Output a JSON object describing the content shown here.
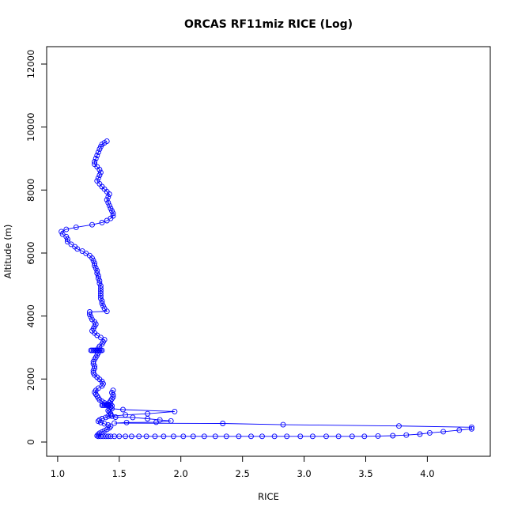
{
  "chart_data": {
    "type": "scatter",
    "title": "ORCAS RF11miz RICE (Log)",
    "xlabel": "RICE",
    "ylabel": "Altitude (m)",
    "xlim": [
      1.0,
      4.4
    ],
    "ylim": [
      -200,
      12500
    ],
    "xticks": [
      "1.0",
      "1.5",
      "2.0",
      "2.5",
      "3.0",
      "3.5",
      "4.0"
    ],
    "yticks": [
      "0",
      "2000",
      "4000",
      "6000",
      "8000",
      "10000",
      "12000"
    ],
    "grid": false,
    "colors": {
      "series": "#0000ff"
    },
    "series": [
      {
        "points": [
          [
            1.4,
            9550
          ],
          [
            1.38,
            9500
          ],
          [
            1.36,
            9450
          ],
          [
            1.35,
            9380
          ],
          [
            1.34,
            9300
          ],
          [
            1.33,
            9200
          ],
          [
            1.32,
            9100
          ],
          [
            1.31,
            9000
          ],
          [
            1.3,
            8900
          ],
          [
            1.3,
            8820
          ],
          [
            1.32,
            8740
          ],
          [
            1.34,
            8650
          ],
          [
            1.35,
            8560
          ],
          [
            1.34,
            8470
          ],
          [
            1.33,
            8380
          ],
          [
            1.32,
            8290
          ],
          [
            1.34,
            8200
          ],
          [
            1.36,
            8110
          ],
          [
            1.38,
            8030
          ],
          [
            1.4,
            7950
          ],
          [
            1.42,
            7870
          ],
          [
            1.41,
            7780
          ],
          [
            1.4,
            7690
          ],
          [
            1.41,
            7600
          ],
          [
            1.42,
            7510
          ],
          [
            1.43,
            7420
          ],
          [
            1.44,
            7340
          ],
          [
            1.45,
            7260
          ],
          [
            1.45,
            7180
          ],
          [
            1.43,
            7100
          ],
          [
            1.4,
            7030
          ],
          [
            1.36,
            6970
          ],
          [
            1.28,
            6900
          ],
          [
            1.15,
            6820
          ],
          [
            1.07,
            6750
          ],
          [
            1.03,
            6680
          ],
          [
            1.04,
            6600
          ],
          [
            1.07,
            6520
          ],
          [
            1.08,
            6440
          ],
          [
            1.08,
            6360
          ],
          [
            1.11,
            6280
          ],
          [
            1.14,
            6200
          ],
          [
            1.16,
            6130
          ],
          [
            1.2,
            6060
          ],
          [
            1.23,
            5990
          ],
          [
            1.26,
            5920
          ],
          [
            1.28,
            5840
          ],
          [
            1.29,
            5760
          ],
          [
            1.3,
            5680
          ],
          [
            1.3,
            5600
          ],
          [
            1.31,
            5520
          ],
          [
            1.32,
            5440
          ],
          [
            1.32,
            5360
          ],
          [
            1.33,
            5280
          ],
          [
            1.33,
            5200
          ],
          [
            1.34,
            5120
          ],
          [
            1.34,
            5040
          ],
          [
            1.35,
            4960
          ],
          [
            1.35,
            4880
          ],
          [
            1.35,
            4800
          ],
          [
            1.35,
            4720
          ],
          [
            1.35,
            4640
          ],
          [
            1.35,
            4560
          ],
          [
            1.36,
            4480
          ],
          [
            1.36,
            4400
          ],
          [
            1.37,
            4320
          ],
          [
            1.38,
            4240
          ],
          [
            1.4,
            4150
          ],
          [
            1.26,
            4130
          ],
          [
            1.26,
            4050
          ],
          [
            1.27,
            3970
          ],
          [
            1.28,
            3890
          ],
          [
            1.3,
            3810
          ],
          [
            1.31,
            3740
          ],
          [
            1.3,
            3670
          ],
          [
            1.29,
            3600
          ],
          [
            1.28,
            3530
          ],
          [
            1.3,
            3460
          ],
          [
            1.32,
            3390
          ],
          [
            1.35,
            3320
          ],
          [
            1.38,
            3250
          ],
          [
            1.37,
            3180
          ],
          [
            1.36,
            3110
          ],
          [
            1.34,
            3040
          ],
          [
            1.33,
            2970
          ],
          [
            1.33,
            2910
          ],
          [
            1.27,
            2910
          ],
          [
            1.28,
            2910
          ],
          [
            1.29,
            2910
          ],
          [
            1.3,
            2910
          ],
          [
            1.31,
            2910
          ],
          [
            1.32,
            2910
          ],
          [
            1.33,
            2910
          ],
          [
            1.34,
            2910
          ],
          [
            1.35,
            2910
          ],
          [
            1.36,
            2910
          ],
          [
            1.33,
            2830
          ],
          [
            1.32,
            2760
          ],
          [
            1.31,
            2690
          ],
          [
            1.3,
            2620
          ],
          [
            1.29,
            2550
          ],
          [
            1.29,
            2480
          ],
          [
            1.3,
            2410
          ],
          [
            1.3,
            2340
          ],
          [
            1.29,
            2270
          ],
          [
            1.29,
            2200
          ],
          [
            1.3,
            2130
          ],
          [
            1.32,
            2060
          ],
          [
            1.34,
            1990
          ],
          [
            1.36,
            1920
          ],
          [
            1.37,
            1850
          ],
          [
            1.36,
            1780
          ],
          [
            1.33,
            1710
          ],
          [
            1.31,
            1640
          ],
          [
            1.3,
            1580
          ],
          [
            1.31,
            1520
          ],
          [
            1.32,
            1460
          ],
          [
            1.33,
            1400
          ],
          [
            1.34,
            1340
          ],
          [
            1.36,
            1290
          ],
          [
            1.38,
            1240
          ],
          [
            1.4,
            1200
          ],
          [
            1.36,
            1170
          ],
          [
            1.37,
            1170
          ],
          [
            1.38,
            1170
          ],
          [
            1.39,
            1170
          ],
          [
            1.4,
            1170
          ],
          [
            1.41,
            1170
          ],
          [
            1.42,
            1170
          ],
          [
            1.43,
            1120
          ],
          [
            1.44,
            1060
          ],
          [
            1.53,
            1030
          ],
          [
            1.95,
            970
          ],
          [
            1.73,
            900
          ],
          [
            1.55,
            860
          ],
          [
            1.44,
            820
          ],
          [
            1.47,
            790
          ],
          [
            1.61,
            780
          ],
          [
            1.73,
            740
          ],
          [
            1.83,
            700
          ],
          [
            1.92,
            670
          ],
          [
            1.8,
            630
          ],
          [
            1.56,
            620
          ],
          [
            1.46,
            600
          ],
          [
            2.34,
            590
          ],
          [
            2.83,
            550
          ],
          [
            3.77,
            510
          ],
          [
            4.36,
            470
          ],
          [
            4.36,
            420
          ],
          [
            4.26,
            380
          ],
          [
            4.13,
            330
          ],
          [
            4.02,
            290
          ],
          [
            3.94,
            250
          ],
          [
            3.83,
            220
          ],
          [
            3.72,
            200
          ],
          [
            3.6,
            190
          ],
          [
            3.49,
            180
          ],
          [
            3.39,
            180
          ],
          [
            3.28,
            180
          ],
          [
            3.18,
            180
          ],
          [
            3.07,
            180
          ],
          [
            2.97,
            180
          ],
          [
            2.86,
            180
          ],
          [
            2.76,
            180
          ],
          [
            2.66,
            180
          ],
          [
            2.57,
            180
          ],
          [
            2.47,
            180
          ],
          [
            2.37,
            180
          ],
          [
            2.28,
            180
          ],
          [
            2.19,
            180
          ],
          [
            2.1,
            180
          ],
          [
            2.02,
            180
          ],
          [
            1.94,
            180
          ],
          [
            1.86,
            180
          ],
          [
            1.79,
            180
          ],
          [
            1.72,
            180
          ],
          [
            1.66,
            180
          ],
          [
            1.6,
            180
          ],
          [
            1.55,
            180
          ],
          [
            1.5,
            180
          ],
          [
            1.46,
            180
          ],
          [
            1.43,
            180
          ],
          [
            1.41,
            180
          ],
          [
            1.39,
            180
          ],
          [
            1.37,
            180
          ],
          [
            1.35,
            180
          ],
          [
            1.33,
            180
          ],
          [
            1.32,
            200
          ],
          [
            1.33,
            240
          ],
          [
            1.34,
            280
          ],
          [
            1.36,
            320
          ],
          [
            1.38,
            360
          ],
          [
            1.4,
            400
          ],
          [
            1.42,
            450
          ],
          [
            1.43,
            500
          ],
          [
            1.41,
            540
          ],
          [
            1.38,
            580
          ],
          [
            1.35,
            620
          ],
          [
            1.33,
            660
          ],
          [
            1.34,
            700
          ],
          [
            1.36,
            740
          ],
          [
            1.39,
            780
          ],
          [
            1.41,
            820
          ],
          [
            1.43,
            860
          ],
          [
            1.43,
            900
          ],
          [
            1.42,
            950
          ],
          [
            1.41,
            1000
          ],
          [
            1.42,
            1050
          ],
          [
            1.43,
            1100
          ],
          [
            1.44,
            1150
          ],
          [
            1.43,
            1200
          ],
          [
            1.42,
            1250
          ],
          [
            1.43,
            1310
          ],
          [
            1.44,
            1370
          ],
          [
            1.45,
            1430
          ],
          [
            1.45,
            1500
          ],
          [
            1.44,
            1570
          ],
          [
            1.45,
            1640
          ]
        ]
      }
    ]
  }
}
